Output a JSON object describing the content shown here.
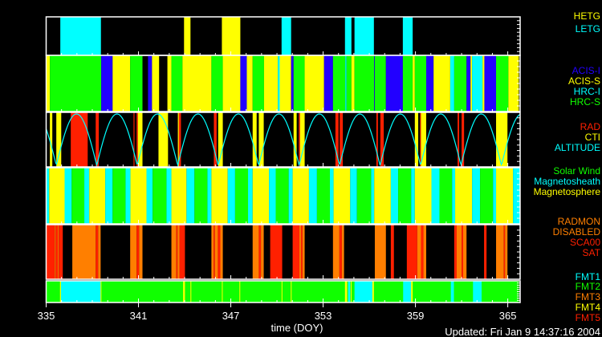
{
  "chart_data": {
    "type": "timeline",
    "xlabel": "time (DOY)",
    "xlim": [
      335,
      365.8
    ],
    "x_ticks": [
      "335",
      "341",
      "347",
      "353",
      "359",
      "365"
    ],
    "updated": "Updated: Fri Jan  9 14:37:16 2004",
    "colors": {
      "yellow": "#ffff00",
      "cyan": "#00ffff",
      "blue": "#2200ff",
      "green": "#10ff00",
      "red": "#ff2000",
      "orange": "#ff7f00",
      "white": "#ffffff"
    },
    "panels": [
      {
        "id": "grating",
        "legend": [
          {
            "label": "HETG",
            "code": "HETG",
            "color": "#ffff00"
          },
          {
            "label": "LETG",
            "code": "LETG",
            "color": "#00ffff"
          }
        ],
        "segments": [
          [
            335.92,
            338.56,
            "LETG"
          ],
          [
            343.96,
            344.38,
            "HETG"
          ],
          [
            346.42,
            347.62,
            "HETG"
          ],
          [
            350.3,
            350.92,
            "LETG"
          ],
          [
            354.42,
            354.84,
            "LETG"
          ],
          [
            355.04,
            356.3,
            "LETG"
          ],
          [
            358.18,
            358.82,
            "LETG"
          ]
        ]
      },
      {
        "id": "instrument",
        "legend": [
          {
            "label": "ACIS-I",
            "code": "AI",
            "color": "#2200ff"
          },
          {
            "label": "ACIS-S",
            "code": "AS",
            "color": "#ffff00"
          },
          {
            "label": "HRC-I",
            "code": "HI",
            "color": "#00ffff"
          },
          {
            "label": "HRC-S",
            "code": "HS",
            "color": "#10ff00"
          }
        ],
        "segments": [
          [
            335.0,
            335.24,
            "AS"
          ],
          [
            335.24,
            338.58,
            "HS"
          ],
          [
            338.58,
            339.32,
            "AI"
          ],
          [
            339.32,
            340.46,
            "AS"
          ],
          [
            340.46,
            341.26,
            "HS"
          ],
          [
            341.62,
            341.88,
            "AI"
          ],
          [
            341.88,
            342.34,
            "AS"
          ],
          [
            342.88,
            343.14,
            "AS"
          ],
          [
            343.14,
            343.86,
            "HS"
          ],
          [
            343.86,
            345.74,
            "AS"
          ],
          [
            345.74,
            346.48,
            "HS"
          ],
          [
            346.48,
            347.62,
            "AS"
          ],
          [
            347.62,
            348.04,
            "AI"
          ],
          [
            348.04,
            348.42,
            "AS"
          ],
          [
            348.42,
            349.16,
            "HS"
          ],
          [
            349.16,
            350.06,
            "AS"
          ],
          [
            350.06,
            350.18,
            "HI"
          ],
          [
            350.18,
            350.92,
            "AS"
          ],
          [
            350.92,
            351.08,
            "AI"
          ],
          [
            351.08,
            351.8,
            "HS"
          ],
          [
            351.8,
            353.06,
            "AS"
          ],
          [
            353.06,
            353.64,
            "AI"
          ],
          [
            353.64,
            354.44,
            "HS"
          ],
          [
            354.44,
            354.52,
            "HI"
          ],
          [
            354.52,
            354.84,
            "HS"
          ],
          [
            354.84,
            355.04,
            "AS"
          ],
          [
            355.04,
            356.32,
            "HS"
          ],
          [
            356.32,
            356.36,
            "AI"
          ],
          [
            356.36,
            357.08,
            "HS"
          ],
          [
            357.08,
            358.18,
            "AI"
          ],
          [
            358.18,
            358.82,
            "HS"
          ],
          [
            358.82,
            358.96,
            "AS"
          ],
          [
            358.96,
            359.7,
            "HS"
          ],
          [
            359.7,
            360.18,
            "AI"
          ],
          [
            360.18,
            361.26,
            "AS"
          ],
          [
            361.26,
            361.52,
            "HI"
          ],
          [
            361.52,
            362.32,
            "HS"
          ],
          [
            362.32,
            362.58,
            "AI"
          ],
          [
            362.58,
            362.68,
            "AS"
          ],
          [
            362.68,
            363.36,
            "HI"
          ],
          [
            363.36,
            363.48,
            "AS"
          ],
          [
            363.48,
            364.24,
            "AI"
          ],
          [
            364.24,
            365.04,
            "HS"
          ],
          [
            365.04,
            365.72,
            "AS"
          ]
        ]
      },
      {
        "id": "radiation",
        "legend": [
          {
            "label": "RAD",
            "code": "RAD",
            "color": "#ff2000"
          },
          {
            "label": "CTI",
            "code": "CTI",
            "color": "#ffff00"
          },
          {
            "label": "ALTITUDE",
            "code": "ALT",
            "color": "#00ffff"
          }
        ],
        "segments": [
          [
            335.24,
            335.4,
            "CTI"
          ],
          [
            335.66,
            335.98,
            "CTI"
          ],
          [
            336.6,
            337.7,
            "RAD"
          ],
          [
            338.22,
            338.42,
            "RAD"
          ],
          [
            340.68,
            340.74,
            "RAD"
          ],
          [
            340.88,
            340.96,
            "RAD"
          ],
          [
            340.96,
            341.26,
            "CTI"
          ],
          [
            342.3,
            342.92,
            "CTI"
          ],
          [
            343.56,
            343.66,
            "CTI"
          ],
          [
            343.62,
            343.76,
            "RAD"
          ],
          [
            345.9,
            346.08,
            "RAD"
          ],
          [
            346.18,
            346.48,
            "CTI"
          ],
          [
            348.42,
            348.68,
            "CTI"
          ],
          [
            348.82,
            349.14,
            "CTI"
          ],
          [
            351.08,
            351.28,
            "CTI"
          ],
          [
            351.42,
            351.5,
            "RAD"
          ],
          [
            351.5,
            351.8,
            "CTI"
          ],
          [
            353.8,
            354.0,
            "RAD"
          ],
          [
            354.08,
            354.28,
            "RAD"
          ],
          [
            356.46,
            356.56,
            "RAD"
          ],
          [
            356.72,
            356.94,
            "RAD"
          ],
          [
            358.96,
            359.18,
            "CTI"
          ],
          [
            359.3,
            359.36,
            "RAD"
          ],
          [
            359.36,
            359.7,
            "CTI"
          ],
          [
            361.74,
            361.84,
            "RAD"
          ],
          [
            362.0,
            362.16,
            "RAD"
          ],
          [
            364.24,
            364.98,
            "CTI"
          ]
        ],
        "altitude": {
          "perigee_doy": 335.66,
          "orbit_period_days": 2.63
        }
      },
      {
        "id": "environment",
        "legend": [
          {
            "label": "Solar Wind",
            "code": "S",
            "color": "#10ff00"
          },
          {
            "label": "Magnetosheath",
            "code": "H",
            "color": "#00ffff"
          },
          {
            "label": "Magnetosphere",
            "code": "P",
            "color": "#ffff00"
          }
        ],
        "boundaries": [
          335.0,
          335.2,
          336.2,
          336.66,
          337.48,
          337.8,
          338.84,
          339.32,
          340.16,
          340.48,
          341.52,
          341.92,
          342.82,
          343.14,
          344.12,
          344.64,
          345.48,
          345.74,
          346.8,
          347.28,
          348.12,
          348.42,
          349.48,
          349.92,
          350.76,
          351.02,
          352.08,
          352.6,
          353.44,
          353.68,
          354.76,
          355.2,
          356.12,
          356.32,
          357.4,
          357.88,
          358.72,
          358.96,
          360.04,
          360.56,
          361.38,
          361.58,
          362.68,
          363.2,
          364.04,
          364.24,
          365.34,
          365.8
        ],
        "states": "HPHSHPHSHPHSHPHSHPHSHPHSHPHSHPHSHPHSHPHSHPHSHPH"
      },
      {
        "id": "radmon",
        "legend": [
          {
            "label": "RADMON",
            "code": "RM",
            "color": "#ff7f00"
          },
          {
            "label": "DISABLED",
            "code": "O",
            "color": "#ff7f00"
          },
          {
            "label": "SCA00",
            "code": "SC",
            "color": "#ff2000"
          },
          {
            "label": "SAT",
            "code": "R",
            "color": "#ff2000"
          }
        ],
        "segments": [
          [
            335.0,
            335.56,
            "R"
          ],
          [
            335.56,
            335.62,
            "O"
          ],
          [
            335.62,
            335.76,
            "R"
          ],
          [
            335.76,
            335.82,
            "O"
          ],
          [
            335.82,
            336.08,
            "R"
          ],
          [
            336.7,
            338.22,
            "O"
          ],
          [
            338.22,
            338.38,
            "R"
          ],
          [
            338.38,
            338.54,
            "O"
          ],
          [
            340.46,
            340.88,
            "O"
          ],
          [
            340.88,
            341.04,
            "R"
          ],
          [
            341.04,
            341.26,
            "O"
          ],
          [
            343.14,
            343.46,
            "O"
          ],
          [
            343.46,
            343.54,
            "R"
          ],
          [
            343.54,
            343.66,
            "O"
          ],
          [
            343.66,
            344.02,
            "R"
          ],
          [
            345.74,
            345.88,
            "O"
          ],
          [
            345.88,
            345.96,
            "R"
          ],
          [
            345.96,
            346.16,
            "O"
          ],
          [
            346.16,
            346.32,
            "R"
          ],
          [
            346.32,
            346.48,
            "O"
          ],
          [
            348.42,
            348.82,
            "O"
          ],
          [
            348.82,
            348.96,
            "R"
          ],
          [
            348.96,
            349.14,
            "O"
          ],
          [
            349.56,
            350.34,
            "R"
          ],
          [
            351.02,
            351.46,
            "R"
          ],
          [
            351.46,
            351.56,
            "O"
          ],
          [
            351.56,
            351.66,
            "R"
          ],
          [
            351.66,
            351.8,
            "O"
          ],
          [
            353.64,
            354.06,
            "O"
          ],
          [
            354.06,
            354.22,
            "R"
          ],
          [
            354.22,
            354.36,
            "O"
          ],
          [
            356.36,
            357.08,
            "O"
          ],
          [
            357.4,
            357.6,
            "R"
          ],
          [
            358.44,
            359.12,
            "R"
          ],
          [
            359.12,
            359.36,
            "O"
          ],
          [
            359.36,
            359.52,
            "R"
          ],
          [
            359.52,
            359.7,
            "O"
          ],
          [
            361.52,
            361.68,
            "R"
          ],
          [
            361.68,
            362.0,
            "O"
          ],
          [
            362.0,
            362.1,
            "R"
          ],
          [
            362.1,
            362.32,
            "O"
          ],
          [
            363.46,
            363.62,
            "R"
          ],
          [
            364.24,
            364.74,
            "O"
          ],
          [
            364.74,
            364.82,
            "R"
          ],
          [
            364.82,
            364.98,
            "O"
          ]
        ]
      },
      {
        "id": "format",
        "legend": [
          {
            "label": "FMT1",
            "code": "F1",
            "color": "#00ffff"
          },
          {
            "label": "FMT2",
            "code": "F2",
            "color": "#10ff00"
          },
          {
            "label": "FMT3",
            "code": "F3",
            "color": "#ff7f00"
          },
          {
            "label": "FMT4",
            "code": "F4",
            "color": "#ffff00"
          },
          {
            "label": "FMT5",
            "code": "F5",
            "color": "#ff2000"
          }
        ],
        "segments": [
          [
            335.0,
            365.72,
            "F2"
          ],
          [
            335.96,
            338.54,
            "F1"
          ],
          [
            354.62,
            354.76,
            "F1"
          ],
          [
            355.04,
            356.2,
            "F1"
          ],
          [
            358.2,
            358.72,
            "F1"
          ],
          [
            361.3,
            361.5,
            "F1"
          ],
          [
            362.74,
            363.3,
            "F1"
          ],
          [
            335.9,
            335.96,
            "F4"
          ],
          [
            338.54,
            338.58,
            "F4"
          ],
          [
            343.9,
            344.02,
            "F4"
          ],
          [
            344.38,
            344.42,
            "F4"
          ],
          [
            346.42,
            346.46,
            "F4"
          ],
          [
            347.56,
            347.6,
            "F4"
          ],
          [
            350.3,
            350.34,
            "F4"
          ],
          [
            350.9,
            350.94,
            "F4"
          ],
          [
            354.42,
            354.56,
            "F4"
          ],
          [
            354.8,
            354.84,
            "F4"
          ],
          [
            356.2,
            356.3,
            "F4"
          ],
          [
            358.72,
            358.82,
            "F4"
          ]
        ]
      }
    ]
  }
}
